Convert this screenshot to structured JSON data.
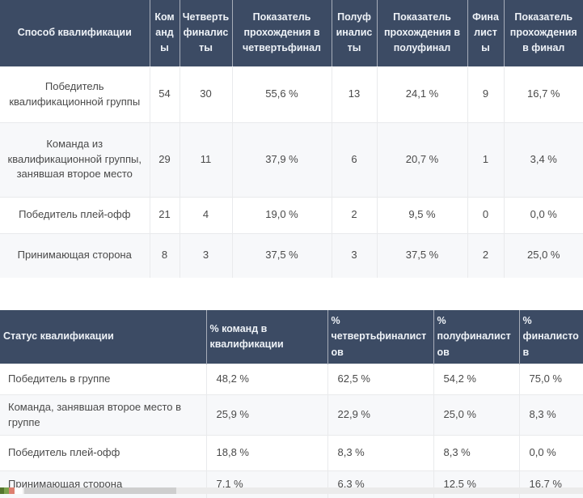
{
  "colors": {
    "header_background": "#3c4b64",
    "header_text": "#eef2f7",
    "row_alternate_background": "#f7f8fa",
    "body_text": "#4a4a4a",
    "grid_line": "#e9eaec",
    "scrollbar_track": "#ebebeb",
    "scrollbar_thumb": "#cecece"
  },
  "chart_data": [
    {
      "type": "table",
      "columns": [
        "Способ квалификации",
        "Команды",
        "Четвертьфиналисты",
        "Показатель прохождения в четвертьфинал",
        "Полуфиналисты",
        "Показатель прохождения в полуфинал",
        "Финалисты",
        "Показатель прохождения в финал"
      ],
      "rows": [
        [
          "Победитель квалификационной группы",
          "54",
          "30",
          "55,6 %",
          "13",
          "24,1 %",
          "9",
          "16,7 %"
        ],
        [
          "Команда из квалификационной группы, занявшая второе место",
          "29",
          "11",
          "37,9 %",
          "6",
          "20,7 %",
          "1",
          "3,4 %"
        ],
        [
          "Победитель плей-офф",
          "21",
          "4",
          "19,0 %",
          "2",
          "9,5 %",
          "0",
          "0,0 %"
        ],
        [
          "Принимающая сторона",
          "8",
          "3",
          "37,5 %",
          "3",
          "37,5 %",
          "2",
          "25,0 %"
        ]
      ]
    },
    {
      "type": "table",
      "columns": [
        "Статус квалификации",
        "% команд в квалификации",
        "% четвертьфиналистов",
        "% полуфиналистов",
        "% финалистов"
      ],
      "rows": [
        [
          "Победитель в группе",
          "48,2 %",
          "62,5 %",
          "54,2 %",
          "75,0 %"
        ],
        [
          "Команда, занявшая второе место в группе",
          "25,9 %",
          "22,9 %",
          "25,0 %",
          "8,3 %"
        ],
        [
          "Победитель плей-офф",
          "18,8 %",
          "8,3 %",
          "8,3 %",
          "0,0 %"
        ],
        [
          "Принимающая сторона",
          "7,1 %",
          "6,3 %",
          "12,5 %",
          "16,7 %"
        ]
      ]
    }
  ]
}
